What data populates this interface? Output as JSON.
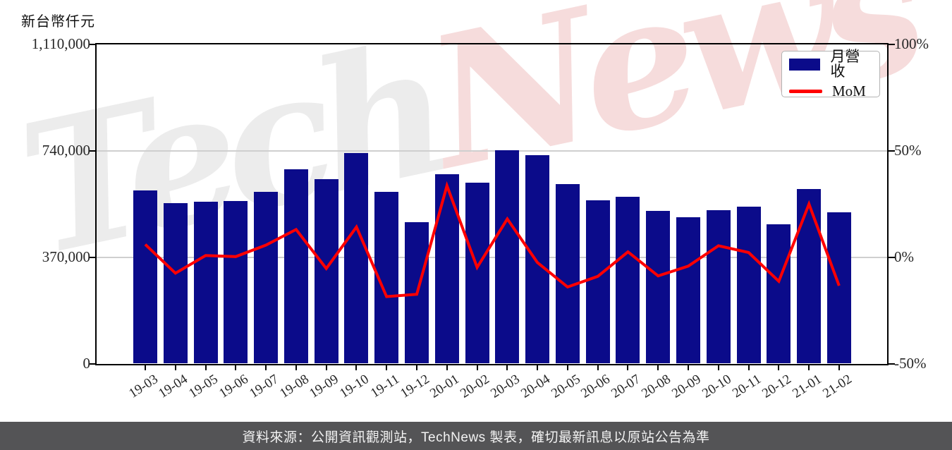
{
  "header": {
    "unit_label": "新台幣仟元"
  },
  "watermark": {
    "text": "TechNews",
    "part1": "Tech",
    "part2": "News",
    "part1_color": "#ececec",
    "part2_color": "#f6dcdc"
  },
  "legend": {
    "items": [
      {
        "label": "月營收",
        "type": "bar",
        "color": "#0b0b8a"
      },
      {
        "label": "MoM",
        "type": "line",
        "color": "#ff0000"
      }
    ]
  },
  "footer": {
    "text": "資料來源：公開資訊觀測站，TechNews 製表，確切最新訊息以原站公告為準",
    "background": "#545456",
    "text_color": "#f3f3f3"
  },
  "chart_data": {
    "type": "bar",
    "title": "",
    "xlabel": "",
    "ylabel": "新台幣仟元",
    "grid": "horizontal",
    "legend_position": "top-right",
    "categories": [
      "19-03",
      "19-04",
      "19-05",
      "19-06",
      "19-07",
      "19-08",
      "19-09",
      "19-10",
      "19-11",
      "19-12",
      "20-01",
      "20-02",
      "20-03",
      "20-04",
      "20-05",
      "20-06",
      "20-07",
      "20-08",
      "20-09",
      "20-10",
      "20-11",
      "20-12",
      "21-01",
      "21-02"
    ],
    "series": [
      {
        "name": "月營收",
        "type": "bar",
        "axis": "left",
        "unit": "新台幣仟元",
        "color": "#0b0b8a",
        "values": [
          601000,
          558000,
          563000,
          565000,
          597000,
          675000,
          641000,
          732000,
          597000,
          491000,
          659000,
          628000,
          742000,
          724000,
          625000,
          567000,
          580000,
          530000,
          508000,
          534000,
          546000,
          485000,
          606000,
          527000
        ]
      },
      {
        "name": "MoM",
        "type": "line",
        "axis": "right",
        "unit": "%",
        "color": "#ff0000",
        "values": [
          6.0,
          -7.5,
          0.8,
          0.3,
          5.7,
          13.0,
          -5.3,
          14.2,
          -18.5,
          -17.4,
          33.6,
          -4.8,
          18.0,
          -2.5,
          -14.0,
          -9.0,
          2.5,
          -8.8,
          -4.2,
          5.4,
          2.2,
          -11.3,
          25.0,
          -13.4
        ]
      }
    ],
    "left_axis": {
      "min": 0,
      "max": 1110000,
      "ticks": [
        {
          "label": "0",
          "value": 0
        },
        {
          "label": "370,000",
          "value": 370000
        },
        {
          "label": "740,000",
          "value": 740000
        },
        {
          "label": "1,110,000",
          "value": 1110000
        }
      ]
    },
    "right_axis": {
      "min": -50,
      "max": 100,
      "ticks": [
        {
          "label": "-50%",
          "value": -50
        },
        {
          "label": "0%",
          "value": 0
        },
        {
          "label": "50%",
          "value": 50
        },
        {
          "label": "100%",
          "value": 100
        }
      ]
    },
    "grid_color": "#cfcfcf"
  }
}
